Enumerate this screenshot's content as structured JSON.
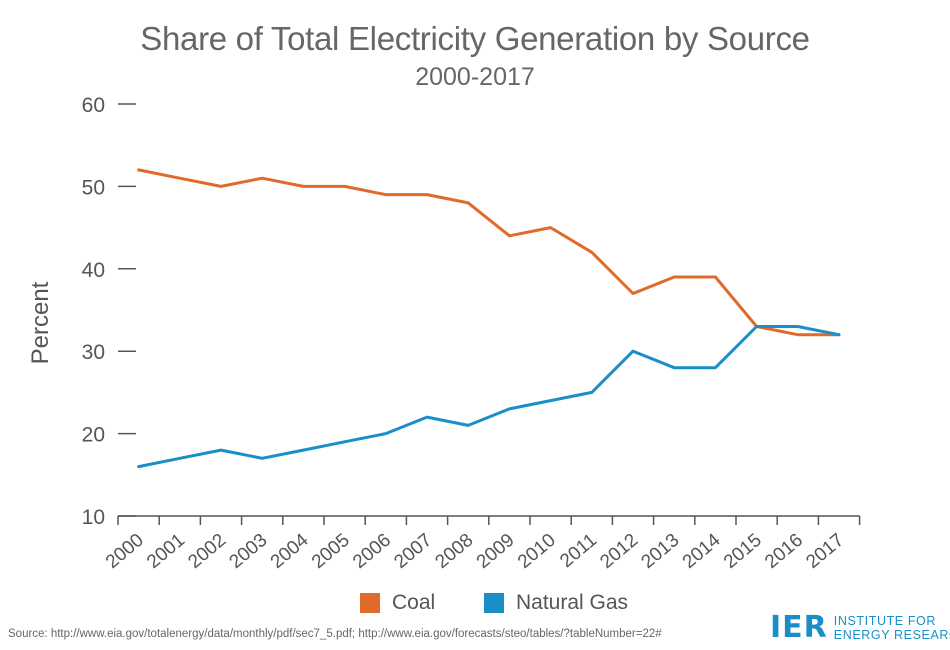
{
  "chart_data": {
    "type": "line",
    "title": "Share of Total Electricity Generation by Source",
    "subtitle": "2000-2017",
    "ylabel": "Percent",
    "xlabel": "",
    "ylim": [
      10,
      60
    ],
    "yticks": [
      "60",
      "50",
      "40",
      "30",
      "20",
      "10"
    ],
    "categories": [
      "2000",
      "2001",
      "2002",
      "2003",
      "2004",
      "2005",
      "2006",
      "2007",
      "2008",
      "2009",
      "2010",
      "2011",
      "2012",
      "2013",
      "2014",
      "2015",
      "2016",
      "2017"
    ],
    "series": [
      {
        "name": "Coal",
        "color": "#e06a2b",
        "values": [
          52,
          51,
          50,
          51,
          50,
          50,
          49,
          49,
          48,
          44,
          45,
          42,
          37,
          39,
          39,
          33,
          32,
          32
        ]
      },
      {
        "name": "Natural Gas",
        "color": "#1a8ec7",
        "values": [
          16,
          17,
          18,
          17,
          18,
          19,
          20,
          22,
          21,
          23,
          24,
          25,
          30,
          28,
          28,
          33,
          33,
          32
        ]
      }
    ],
    "grid": false,
    "legend_position": "bottom-center"
  },
  "source": "Source: http://www.eia.gov/totalenergy/data/monthly/pdf/sec7_5.pdf; http://www.eia.gov/forecasts/steo/tables/?tableNumber=22#",
  "logo": {
    "mark": "IER",
    "line1": "INSTITUTE FOR",
    "line2": "ENERGY RESEARCH",
    "color": "#1a8ec7"
  }
}
